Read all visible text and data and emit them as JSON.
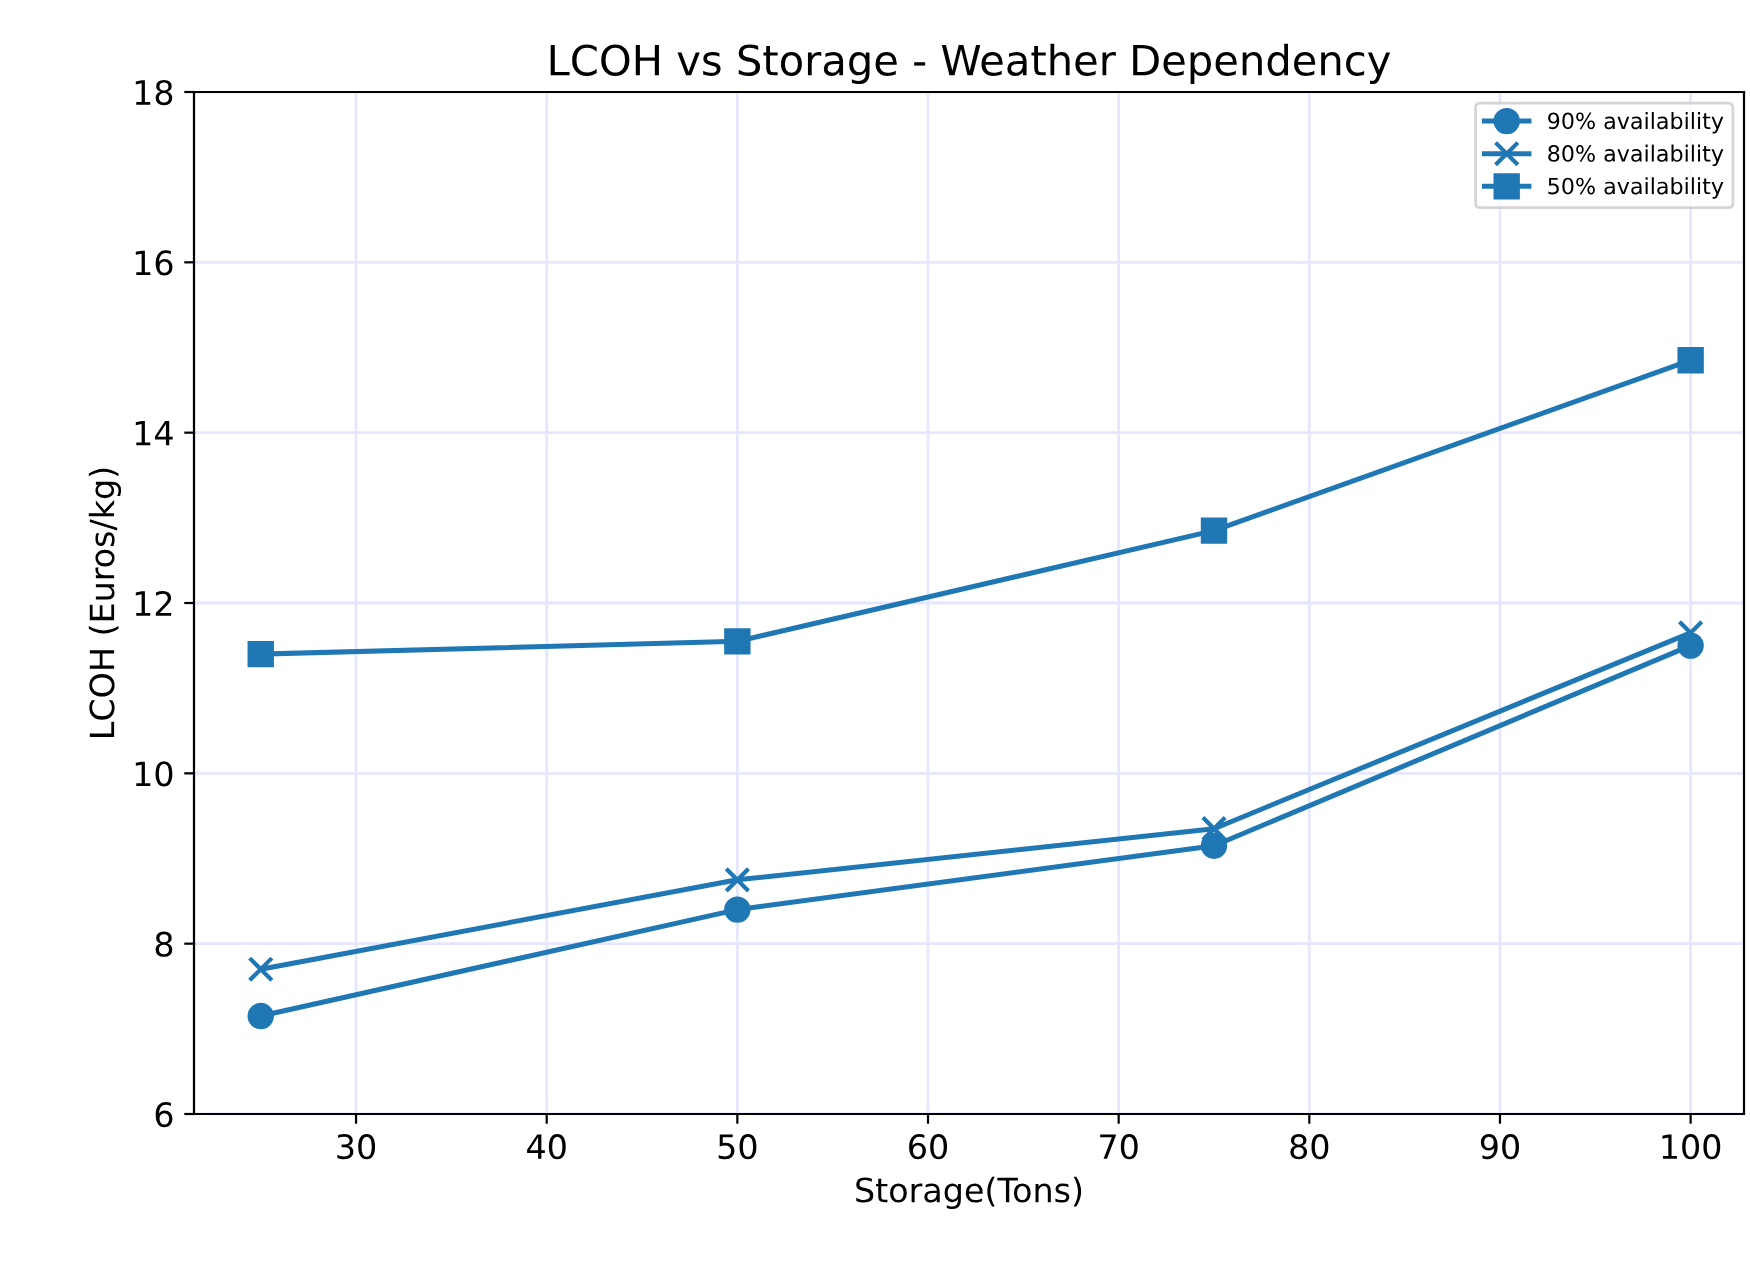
{
  "chart_data": {
    "type": "line",
    "title": "LCOH vs Storage - Weather Dependency",
    "xlabel": "Storage(Tons)",
    "ylabel": "LCOH (Euros/kg)",
    "x": [
      25,
      50,
      75,
      100
    ],
    "series": [
      {
        "name": "90% availability",
        "color": "#1f77b4",
        "marker": "circle",
        "values": [
          7.15,
          8.4,
          9.15,
          11.5
        ]
      },
      {
        "name": "80% availability",
        "color": "#1f77b4",
        "marker": "cross",
        "values": [
          7.7,
          8.75,
          9.35,
          11.65
        ]
      },
      {
        "name": "50% availability",
        "color": "#1f77b4",
        "marker": "square",
        "values": [
          11.4,
          11.55,
          12.85,
          14.85
        ]
      }
    ],
    "xlim": [
      21.5,
      102.8
    ],
    "xticks": [
      30,
      40,
      50,
      60,
      70,
      80,
      90,
      100
    ],
    "ylim": [
      6,
      18
    ],
    "yticks": [
      6,
      8,
      10,
      12,
      14,
      16,
      18
    ],
    "grid": true,
    "legend": "top right",
    "line_style": "solid"
  }
}
